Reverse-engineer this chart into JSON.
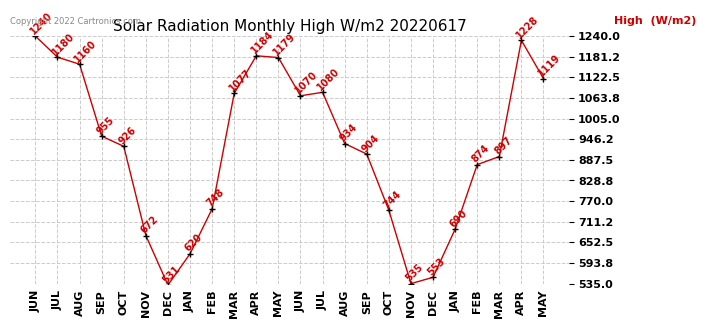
{
  "title": "Solar Radiation Monthly High W/m2 20220617",
  "copyright": "Copyright 2022 Cartronics.com",
  "legend_label": "High  (W/m2)",
  "months": [
    "JUN",
    "JUL",
    "AUG",
    "SEP",
    "OCT",
    "NOV",
    "DEC",
    "JAN",
    "FEB",
    "MAR",
    "APR",
    "MAY",
    "JUN",
    "JUL",
    "AUG",
    "SEP",
    "OCT",
    "NOV",
    "DEC",
    "JAN",
    "FEB",
    "MAR",
    "APR",
    "MAY"
  ],
  "values": [
    1240,
    1180,
    1160,
    955,
    926,
    672,
    531,
    620,
    748,
    1077,
    1184,
    1179,
    1070,
    1080,
    934,
    904,
    744,
    535,
    553,
    690,
    874,
    897,
    1228,
    1119
  ],
  "line_color": "#cc0000",
  "marker_color": "#000000",
  "background_color": "#ffffff",
  "grid_color": "#cccccc",
  "title_color": "#000000",
  "copyright_color": "#888888",
  "ylim_min": 535.0,
  "ylim_max": 1240.0,
  "yticks": [
    535.0,
    593.8,
    652.5,
    711.2,
    770.0,
    828.8,
    887.5,
    946.2,
    1005.0,
    1063.8,
    1122.5,
    1181.2,
    1240.0
  ],
  "label_fontsize": 7,
  "title_fontsize": 11,
  "tick_fontsize": 8,
  "copyright_fontsize": 6,
  "legend_fontsize": 8
}
